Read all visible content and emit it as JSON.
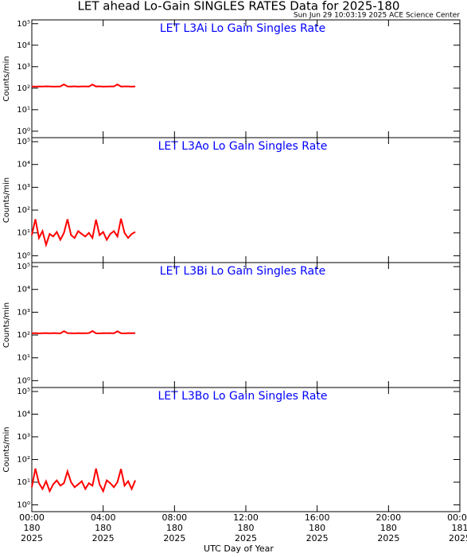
{
  "title": "LET ahead Lo-Gain SINGLES RATES Data for 2025-180",
  "subtitle": "Sun Jun 29 10:03:19 2025 ACE Science Center",
  "xlabel": "UTC Day of Year",
  "xlim": [
    0,
    24
  ],
  "xticks": [
    {
      "value": 0,
      "label": "00:00"
    },
    {
      "value": 4,
      "label": "04:00"
    },
    {
      "value": 8,
      "label": "08:00"
    },
    {
      "value": 12,
      "label": "12:00"
    },
    {
      "value": 16,
      "label": "16:00"
    },
    {
      "value": 20,
      "label": "20:00"
    },
    {
      "value": 24,
      "label": "00:00"
    }
  ],
  "xtick_days": [
    "180",
    "180",
    "180",
    "180",
    "180",
    "180",
    "181"
  ],
  "xtick_years": [
    "2025",
    "2025",
    "2025",
    "2025",
    "2025",
    "2025",
    "2025"
  ],
  "chart_data": [
    {
      "type": "line",
      "title": "LET L3Ai Lo Gain Singles Rate",
      "ylabel": "Counts/min",
      "log_y": true,
      "ylim": [
        0.5,
        150000
      ],
      "yticks": [
        {
          "value": 1,
          "label": "10⁰"
        },
        {
          "value": 10,
          "label": "10¹"
        },
        {
          "value": 100,
          "label": "10²"
        },
        {
          "value": 1000,
          "label": "10³"
        },
        {
          "value": 10000,
          "label": "10⁴"
        },
        {
          "value": 100000,
          "label": "10⁵"
        }
      ],
      "x": [
        0,
        0.2,
        0.4,
        0.6,
        0.8,
        1,
        1.2,
        1.4,
        1.6,
        1.8,
        2,
        2.2,
        2.4,
        2.6,
        2.8,
        3,
        3.2,
        3.4,
        3.6,
        3.8,
        4,
        4.2,
        4.4,
        4.6,
        4.8,
        5,
        5.2,
        5.4,
        5.6,
        5.8
      ],
      "series": [
        {
          "name": "L3Ai",
          "color": "#ff0000",
          "values": [
            120,
            118,
            121,
            119,
            122,
            120,
            118,
            119,
            121,
            150,
            120,
            119,
            122,
            118,
            120,
            121,
            119,
            148,
            120,
            122,
            118,
            119,
            121,
            120,
            150,
            119,
            120,
            121,
            118,
            120
          ]
        }
      ]
    },
    {
      "type": "line",
      "title": "LET L3Ao Lo Gain Singles Rate",
      "ylabel": "Counts/min",
      "log_y": true,
      "ylim": [
        0.5,
        150000
      ],
      "yticks": [
        {
          "value": 1,
          "label": "10⁰"
        },
        {
          "value": 10,
          "label": "10¹"
        },
        {
          "value": 100,
          "label": "10²"
        },
        {
          "value": 1000,
          "label": "10³"
        },
        {
          "value": 10000,
          "label": "10⁴"
        },
        {
          "value": 100000,
          "label": "10⁵"
        }
      ],
      "x": [
        0,
        0.2,
        0.4,
        0.6,
        0.8,
        1,
        1.2,
        1.4,
        1.6,
        1.8,
        2,
        2.2,
        2.4,
        2.6,
        2.8,
        3,
        3.2,
        3.4,
        3.6,
        3.8,
        4,
        4.2,
        4.4,
        4.6,
        4.8,
        5,
        5.2,
        5.4,
        5.6,
        5.8
      ],
      "series": [
        {
          "name": "L3Ao",
          "color": "#ff0000",
          "values": [
            8,
            40,
            6,
            12,
            3,
            9,
            7,
            11,
            5,
            10,
            40,
            8,
            6,
            12,
            9,
            7,
            10,
            6,
            38,
            8,
            11,
            5,
            9,
            12,
            7,
            42,
            10,
            6,
            9,
            11
          ]
        }
      ]
    },
    {
      "type": "line",
      "title": "LET L3Bi Lo Gain Singles Rate",
      "ylabel": "Counts/min",
      "log_y": true,
      "ylim": [
        0.5,
        150000
      ],
      "yticks": [
        {
          "value": 1,
          "label": "10⁰"
        },
        {
          "value": 10,
          "label": "10¹"
        },
        {
          "value": 100,
          "label": "10²"
        },
        {
          "value": 1000,
          "label": "10³"
        },
        {
          "value": 10000,
          "label": "10⁴"
        },
        {
          "value": 100000,
          "label": "10⁵"
        }
      ],
      "x": [
        0,
        0.2,
        0.4,
        0.6,
        0.8,
        1,
        1.2,
        1.4,
        1.6,
        1.8,
        2,
        2.2,
        2.4,
        2.6,
        2.8,
        3,
        3.2,
        3.4,
        3.6,
        3.8,
        4,
        4.2,
        4.4,
        4.6,
        4.8,
        5,
        5.2,
        5.4,
        5.6,
        5.8
      ],
      "series": [
        {
          "name": "L3Bi",
          "color": "#ff0000",
          "values": [
            119,
            121,
            118,
            120,
            122,
            119,
            121,
            120,
            118,
            148,
            121,
            120,
            118,
            122,
            119,
            120,
            121,
            150,
            119,
            118,
            121,
            120,
            122,
            119,
            146,
            120,
            118,
            121,
            120,
            122
          ]
        }
      ]
    },
    {
      "type": "line",
      "title": "LET L3Bo Lo Gain Singles Rate",
      "ylabel": "Counts/min",
      "log_y": true,
      "ylim": [
        0.5,
        150000
      ],
      "yticks": [
        {
          "value": 1,
          "label": "10⁰"
        },
        {
          "value": 10,
          "label": "10¹"
        },
        {
          "value": 100,
          "label": "10²"
        },
        {
          "value": 1000,
          "label": "10³"
        },
        {
          "value": 10000,
          "label": "10⁴"
        },
        {
          "value": 100000,
          "label": "10⁵"
        }
      ],
      "x": [
        0,
        0.2,
        0.4,
        0.6,
        0.8,
        1,
        1.2,
        1.4,
        1.6,
        1.8,
        2,
        2.2,
        2.4,
        2.6,
        2.8,
        3,
        3.2,
        3.4,
        3.6,
        3.8,
        4,
        4.2,
        4.4,
        4.6,
        4.8,
        5,
        5.2,
        5.4,
        5.6,
        5.8
      ],
      "series": [
        {
          "name": "L3Bo",
          "color": "#ff0000",
          "values": [
            6,
            40,
            9,
            5,
            11,
            4,
            8,
            12,
            7,
            9,
            30,
            10,
            6,
            8,
            11,
            5,
            9,
            7,
            40,
            8,
            4,
            12,
            9,
            6,
            10,
            38,
            7,
            11,
            5,
            12
          ]
        }
      ]
    }
  ]
}
